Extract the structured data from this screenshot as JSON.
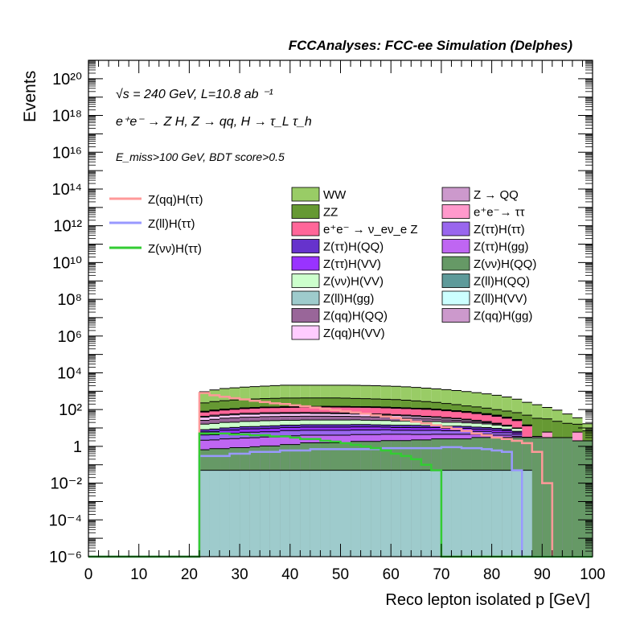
{
  "header": {
    "title": "FCCAnalyses: FCC-ee Simulation (Delphes)"
  },
  "chart_data": {
    "type": "histogram-stacked",
    "title": "FCCAnalyses: FCC-ee Simulation (Delphes)",
    "xlabel": "Reco lepton isolated p [GeV]",
    "ylabel": "Events",
    "xlim": [
      0,
      100
    ],
    "ylim": [
      1e-06,
      1e+21
    ],
    "yscale": "log",
    "grid": false,
    "legend_position": "upper-middle (three columns)",
    "annotations": {
      "energy": "√s = 240 GeV, L=10.8 ab ⁻¹",
      "process": "e⁺e⁻ → Z H, Z → qq, H → τ_L τ_h",
      "selection": "E_miss>100 GeV, BDT score>0.5"
    },
    "x_ticks": [
      "0",
      "10",
      "20",
      "30",
      "40",
      "50",
      "60",
      "70",
      "80",
      "90",
      "100"
    ],
    "y_ticks": [
      "10⁻⁶",
      "10⁻⁴",
      "10⁻²",
      "1",
      "10²",
      "10⁴",
      "10⁶",
      "10⁸",
      "10¹⁰",
      "10¹²",
      "10¹⁴",
      "10¹⁶",
      "10¹⁸",
      "10²⁰"
    ],
    "bin_edges": [
      0,
      2,
      4,
      6,
      8,
      10,
      12,
      14,
      16,
      18,
      20,
      22,
      24,
      26,
      28,
      30,
      32,
      34,
      36,
      38,
      40,
      42,
      44,
      46,
      48,
      50,
      52,
      54,
      56,
      58,
      60,
      62,
      64,
      66,
      68,
      70,
      72,
      74,
      76,
      78,
      80,
      82,
      84,
      86,
      88,
      90,
      92,
      94,
      96,
      98,
      100
    ],
    "stacked_layers": [
      {
        "name": "Z(ll)H(gg)",
        "color": "#9ecbcc",
        "values": [
          0,
          0,
          0,
          0,
          0,
          0,
          0,
          0,
          0,
          0,
          0,
          0.05,
          0.05,
          0.05,
          0.05,
          0.05,
          0.05,
          0.05,
          0.05,
          0.05,
          0.05,
          0.05,
          0.05,
          0.05,
          0.05,
          0.05,
          0.05,
          0.05,
          0.05,
          0.05,
          0.05,
          0.05,
          0.05,
          0.05,
          0.05,
          0.05,
          0.05,
          0.05,
          0.05,
          0.05,
          0.05,
          0.05,
          0.05,
          0.05,
          0,
          0,
          0,
          0,
          0,
          0
        ]
      },
      {
        "name": "Z(νν)H(QQ)",
        "color": "#669966",
        "values": [
          0,
          0,
          0,
          0,
          0,
          0,
          0,
          0,
          0,
          0,
          0,
          0.6,
          0.7,
          0.7,
          0.8,
          0.8,
          0.9,
          1,
          1,
          1.2,
          1.2,
          1.5,
          1.5,
          1.5,
          1.5,
          1.5,
          1.8,
          1.8,
          1.8,
          2,
          2,
          2,
          2.2,
          2.2,
          2.5,
          2.5,
          2.5,
          2.5,
          3,
          3,
          3,
          3,
          3,
          3,
          3,
          3,
          3,
          3,
          2,
          2
        ]
      },
      {
        "name": "Z(ττ)H(gg)",
        "color": "#bf66f2",
        "values": [
          0,
          0,
          0,
          0,
          0,
          0,
          0,
          0,
          0,
          0,
          0,
          1.5,
          1.5,
          1.8,
          1.8,
          2,
          2,
          2.2,
          2.2,
          2.5,
          2.5,
          2.5,
          2.5,
          2.5,
          2.5,
          2.5,
          2.5,
          2.5,
          2.5,
          2.5,
          2.5,
          2.5,
          2.2,
          2.2,
          2,
          2,
          2,
          2,
          1.5,
          1.5,
          1,
          1,
          0.5,
          0,
          0,
          0,
          0,
          0,
          0,
          0
        ]
      },
      {
        "name": "Z(ττ)H(ττ)",
        "color": "#9966ee",
        "values": [
          0,
          0,
          0,
          0,
          0,
          0,
          0,
          0,
          0,
          0,
          0,
          2,
          2,
          2.5,
          2.5,
          3,
          3,
          3,
          3,
          3.5,
          3.5,
          3.5,
          3.5,
          3.5,
          3.5,
          3.5,
          3.5,
          3.5,
          3.5,
          3.5,
          3,
          3,
          3,
          3,
          3,
          2.5,
          2.5,
          2.5,
          2,
          2,
          1.5,
          1.5,
          1,
          0,
          0,
          0,
          0,
          0,
          0,
          0
        ]
      },
      {
        "name": "Z(ττ)H(VV)",
        "color": "#9933ff",
        "values": [
          0,
          0,
          0,
          0,
          0,
          0,
          0,
          0,
          0,
          0,
          0,
          2,
          2,
          2.5,
          2.5,
          3,
          3,
          3,
          3.5,
          3.5,
          3.5,
          3.5,
          3.5,
          3.5,
          3.5,
          3.5,
          3.5,
          3.5,
          3.5,
          3,
          3,
          3,
          3,
          3,
          3,
          2.5,
          2.5,
          2.5,
          2,
          2,
          2,
          1.5,
          1,
          0,
          0,
          0,
          0,
          0,
          0,
          0
        ]
      },
      {
        "name": "Z(ττ)H(QQ)",
        "color": "#6633cc",
        "values": [
          0,
          0,
          0,
          0,
          0,
          0,
          0,
          0,
          0,
          0,
          0,
          2,
          2.5,
          2.5,
          3,
          3,
          3,
          3.5,
          3.5,
          3.5,
          3.5,
          4,
          4,
          4,
          4,
          4,
          4,
          4,
          3.5,
          3.5,
          3.5,
          3.5,
          3.5,
          3,
          3,
          3,
          3,
          2.5,
          2.5,
          2,
          2,
          1.5,
          1,
          0,
          0,
          0,
          0,
          0,
          0,
          0
        ]
      },
      {
        "name": "Z(νν)H(VV)",
        "color": "#ccffcc",
        "values": [
          0,
          0,
          0,
          0,
          0,
          0,
          0,
          0,
          0,
          0,
          0,
          8,
          9,
          10,
          10,
          11,
          11,
          12,
          12,
          12,
          12,
          12,
          12,
          12,
          12,
          12,
          12,
          11,
          11,
          11,
          10,
          10,
          10,
          9,
          9,
          8,
          8,
          7,
          7,
          6,
          5,
          4,
          3,
          0,
          0,
          0,
          0,
          0,
          0,
          0
        ]
      },
      {
        "name": "Z(qq)H(QQ)",
        "color": "#996699",
        "values": [
          0,
          0,
          0,
          0,
          0,
          0,
          0,
          0,
          0,
          0,
          0,
          10,
          12,
          14,
          15,
          16,
          16,
          17,
          17,
          17,
          17,
          17,
          17,
          17,
          16,
          16,
          15,
          15,
          14,
          13,
          12,
          11,
          10,
          9,
          8,
          7,
          6,
          5,
          4,
          3,
          2,
          1,
          0.5,
          0,
          0,
          0,
          0,
          0,
          0,
          0
        ]
      },
      {
        "name": "Z(qq)H(VV)",
        "color": "#ffccff",
        "values": [
          0,
          0,
          0,
          0,
          0,
          0,
          0,
          0,
          0,
          0,
          0,
          12,
          14,
          15,
          16,
          17,
          17,
          18,
          18,
          18,
          18,
          18,
          17,
          17,
          16,
          16,
          15,
          14,
          13,
          12,
          11,
          10,
          9,
          8,
          7,
          6,
          5,
          4,
          3,
          2,
          1,
          0.5,
          0,
          0,
          0,
          0,
          0,
          0,
          0,
          0
        ]
      },
      {
        "name": "Z(qq)H(gg)",
        "color": "#cc99cc",
        "values": [
          0,
          0,
          0,
          0,
          0,
          0,
          0,
          0,
          0,
          0,
          0,
          5,
          6,
          6,
          7,
          7,
          7,
          8,
          8,
          8,
          8,
          8,
          8,
          8,
          8,
          7,
          7,
          7,
          6,
          6,
          5,
          5,
          4,
          4,
          3,
          3,
          2,
          2,
          1,
          1,
          0.5,
          0,
          0,
          0,
          0,
          0,
          0,
          0,
          0,
          0
        ]
      },
      {
        "name": "e⁺e⁻ → ν_eν_e Z",
        "color": "#ff6699",
        "values": [
          0,
          0,
          0,
          0,
          0,
          0,
          0,
          0,
          0,
          0,
          0,
          30,
          35,
          40,
          45,
          50,
          55,
          58,
          60,
          62,
          64,
          66,
          68,
          70,
          70,
          70,
          70,
          70,
          70,
          68,
          66,
          64,
          62,
          60,
          55,
          50,
          45,
          40,
          35,
          30,
          25,
          20,
          15,
          10,
          0,
          0,
          0,
          0,
          0,
          0
        ]
      },
      {
        "name": "Z(ll)H(QQ)",
        "color": "#5e9a9a",
        "values": [
          0,
          0,
          0,
          0,
          0,
          0,
          0,
          0,
          0,
          0,
          0,
          5,
          6,
          7,
          7,
          8,
          8,
          8,
          8,
          8,
          8,
          8,
          8,
          8,
          8,
          8,
          8,
          8,
          8,
          8,
          8,
          8,
          8,
          8,
          7,
          7,
          7,
          6,
          6,
          5,
          4,
          3,
          2,
          1,
          0,
          0,
          0,
          0,
          0,
          0
        ]
      },
      {
        "name": "Z(ll)H(VV)",
        "color": "#ccffff",
        "values": [
          0,
          0,
          0,
          0,
          0,
          0,
          0,
          0,
          0,
          0,
          0,
          2,
          2,
          2,
          2,
          2,
          2,
          2,
          2,
          2,
          2,
          2,
          2,
          2,
          2,
          2,
          2,
          2,
          2,
          2,
          2,
          2,
          2,
          2,
          2,
          2,
          2,
          2,
          2,
          2,
          2,
          1,
          1,
          0.5,
          0,
          0,
          0,
          0,
          0,
          0
        ]
      },
      {
        "name": "Z → QQ",
        "color": "#cc99cc",
        "values": [
          0,
          0,
          0,
          0,
          0,
          0,
          0,
          0,
          0,
          0,
          0,
          0,
          0,
          0,
          0,
          0,
          0,
          0,
          0,
          0.05,
          0,
          0,
          0,
          0,
          0,
          0,
          0,
          0,
          0,
          0,
          0,
          0,
          0,
          0,
          0,
          0,
          0,
          0,
          0,
          0,
          0,
          0,
          0,
          0,
          0.5,
          0,
          0,
          0,
          0,
          0
        ]
      },
      {
        "name": "e⁺e⁻→ ττ",
        "color": "#ff99cc",
        "values": [
          0,
          0,
          0,
          0,
          0,
          0,
          0,
          0,
          0,
          0,
          0,
          0,
          0,
          0,
          0,
          0,
          0,
          0,
          0,
          0,
          0,
          0,
          0,
          0,
          0,
          0,
          0,
          0,
          0,
          0,
          0,
          0,
          0,
          0,
          0,
          0,
          0,
          0,
          0,
          0,
          0,
          0,
          0,
          0,
          0,
          3,
          0,
          0,
          4,
          0
        ]
      },
      {
        "name": "ZZ",
        "color": "#669933",
        "values": [
          0,
          0,
          0,
          0,
          0,
          0,
          0,
          0,
          0,
          0,
          0,
          150,
          180,
          200,
          220,
          240,
          250,
          260,
          270,
          280,
          280,
          280,
          280,
          280,
          280,
          270,
          260,
          250,
          240,
          230,
          220,
          200,
          180,
          160,
          140,
          120,
          100,
          80,
          70,
          60,
          50,
          45,
          40,
          35,
          30,
          25,
          20,
          15,
          10,
          5
        ]
      },
      {
        "name": "WW",
        "color": "#99cc66",
        "values": [
          0,
          0,
          0,
          0,
          0,
          0,
          0,
          0,
          0,
          0,
          0,
          700,
          900,
          1100,
          1200,
          1300,
          1400,
          1500,
          1600,
          1700,
          1700,
          1700,
          1700,
          1700,
          1700,
          1700,
          1700,
          1650,
          1600,
          1550,
          1500,
          1400,
          1300,
          1200,
          1100,
          1000,
          900,
          800,
          700,
          600,
          500,
          400,
          300,
          200,
          150,
          100,
          70,
          40,
          20,
          10
        ]
      }
    ],
    "signal_lines": [
      {
        "name": "Z(qq)H(ττ)",
        "color": "#ff9999",
        "values": [
          0,
          0,
          0,
          0,
          0,
          0,
          0,
          0,
          0,
          0,
          0,
          800,
          600,
          500,
          420,
          360,
          300,
          260,
          220,
          200,
          170,
          150,
          130,
          110,
          95,
          80,
          70,
          60,
          50,
          42,
          35,
          28,
          22,
          18,
          14,
          11,
          9,
          7,
          5,
          4,
          3,
          2.5,
          2,
          1.5,
          0.5,
          0.01,
          1e-06,
          0,
          0,
          0
        ]
      },
      {
        "name": "Z(ll)H(ττ)",
        "color": "#9999ff",
        "values": [
          0,
          0,
          0,
          0,
          0,
          0,
          0,
          0,
          0,
          0,
          0,
          0.3,
          0.3,
          0.3,
          0.4,
          0.4,
          0.5,
          0.5,
          0.5,
          0.6,
          0.6,
          0.6,
          0.7,
          0.7,
          0.7,
          0.7,
          0.7,
          0.7,
          0.7,
          0.8,
          0.8,
          0.8,
          0.8,
          0.8,
          0.8,
          0.9,
          0.9,
          0.8,
          0.8,
          0.7,
          0.6,
          0.5,
          0.05,
          1e-06,
          0,
          0,
          0,
          0,
          0,
          0
        ]
      },
      {
        "name": "Z(νν)H(ττ)",
        "color": "#33cc33",
        "values": [
          0,
          0,
          0,
          0,
          0,
          0,
          0,
          0,
          0,
          0,
          0,
          5,
          5,
          5,
          4.5,
          4.5,
          4,
          4,
          3.5,
          3.5,
          3,
          2.5,
          2.5,
          2,
          1.8,
          1.5,
          1.2,
          1,
          0.8,
          0.6,
          0.4,
          0.3,
          0.2,
          0.1,
          0.05,
          1e-06,
          0,
          0,
          0,
          0,
          0,
          0,
          0,
          0,
          0,
          0,
          0,
          0,
          0,
          0
        ]
      }
    ]
  }
}
